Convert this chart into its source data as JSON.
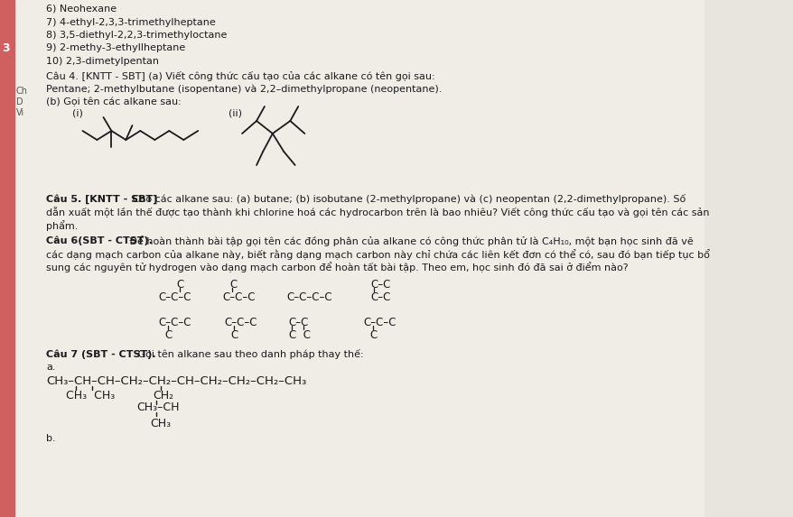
{
  "bg_color": "#e8e4de",
  "paper_color": "#f0ece6",
  "text_color": "#1a1a1a",
  "strip_color": "#d06060",
  "title_lines": [
    "6) Neohexane",
    "7) 4-ethyl-2,3,3-trimethylheptane",
    "8) 3,5-diethyl-2,2,3-trimethyloctane",
    "9) 2-methy-3-ethyllheptane",
    "10) 2,3-dimetylpentan"
  ],
  "cau4_line1": "Câu 4. [KNTT - SBT] (a) Viết công thức cấu tạo của các alkane có tên gọi sau:",
  "cau4_line2": "Pentane; 2-methylbutane (isopentane) và 2,2–dimethylpropane (neopentane).",
  "cau4_line3": "(b) Gọi tên các alkane sau:",
  "label_i": "(i)",
  "label_ii": "(ii)",
  "cau5_bold": "Câu 5. [KNTT - SBT]",
  "cau5_rest": " Cho các alkane sau: (a) butane; (b) isobutane (2-methylpropane) và (c) neopentan (2,2-dimethylpropane). Số",
  "cau5b": "dẫn xuất một lần thế được tạo thành khi chlorine hoá các hydrocarbon trên là bao nhiêu? Viết công thức cấu tạo và gọi tên các sản",
  "cau5c": "phẩm.",
  "cau6_bold": "Câu 6(SBT - CTST).",
  "cau6_rest": " Để hoàn thành bài tập gọi tên các đồng phân của alkane có công thức phân tử là C₄H₁₀, một bạn học sinh đã vẽ",
  "cau6b": "các dạng mạch carbon của alkane này, biết rằng dạng mạch carbon này chỉ chứa các liên kết đơn có thể có, sau đó bạn tiếp tục bổ",
  "cau6c": "sung các nguyên tử hydrogen vào dạng mạch carbon để hoàn tất bài tập. Theo em, học sinh đó đã sai ở điểm nào?",
  "cau7": "Câu 7 (SBT - CTST).",
  "cau7_rest": " Gọi tên alkane sau theo danh pháp thay thế:",
  "cau7a": "a.",
  "cau7b": "b."
}
